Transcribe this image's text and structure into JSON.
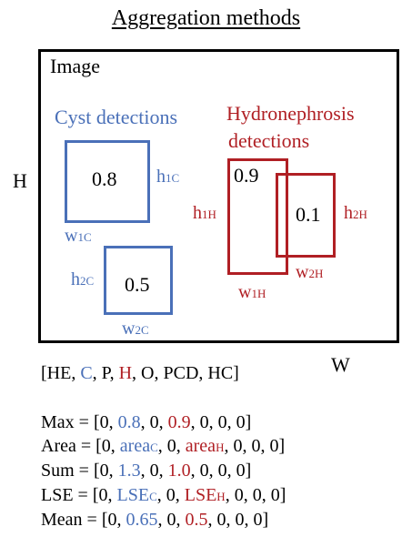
{
  "title": "Aggregation methods",
  "image_label": "Image",
  "axis": {
    "height": "H",
    "width": "W"
  },
  "colors": {
    "cyst": "#4a70b8",
    "hydronephrosis": "#b01f24"
  },
  "cyst": {
    "heading": "Cyst detections",
    "boxes": [
      {
        "score": "0.8",
        "h_main": "h",
        "h_sub": "1C",
        "w_main": "w",
        "w_sub": "1C"
      },
      {
        "score": "0.5",
        "h_main": "h",
        "h_sub": "2C",
        "w_main": "w",
        "w_sub": "2C"
      }
    ]
  },
  "hydro": {
    "heading_line1": "Hydronephrosis",
    "heading_line2": "detections",
    "boxes": [
      {
        "score": "0.9",
        "h_main": "h",
        "h_sub": "1H",
        "w_main": "w",
        "w_sub": "1H"
      },
      {
        "score": "0.1",
        "h_main": "h",
        "h_sub": "2H",
        "w_main": "w",
        "w_sub": "2H"
      }
    ]
  },
  "classes": {
    "open": "[HE, ",
    "c": "C",
    "sep1": ", P, ",
    "h": "H",
    "close": ", O, PCD, HC]"
  },
  "formulas": {
    "max": {
      "prefix": "Max = [0, ",
      "c": "0.8",
      "mid": ", 0, ",
      "h": "0.9",
      "suffix": ", 0, 0, 0]"
    },
    "area": {
      "prefix": "Area = [0, ",
      "c_main": "area",
      "c_sub": "C",
      "mid": ", 0, ",
      "h_main": "area",
      "h_sub": "H",
      "suffix": ", 0, 0, 0]"
    },
    "sum": {
      "prefix": "Sum = [0, ",
      "c": "1.3",
      "mid": ", 0, ",
      "h": "1.0",
      "suffix": ", 0, 0, 0]"
    },
    "lse": {
      "prefix": "LSE = [0, ",
      "c_main": "LSE",
      "c_sub": "C",
      "mid": ", 0, ",
      "h_main": "LSE",
      "h_sub": "H",
      "suffix": ", 0, 0, 0]"
    },
    "mean": {
      "prefix": "Mean = [0, ",
      "c": "0.65",
      "mid": ", 0, ",
      "h": "0.5",
      "suffix": ", 0, 0, 0]"
    }
  }
}
